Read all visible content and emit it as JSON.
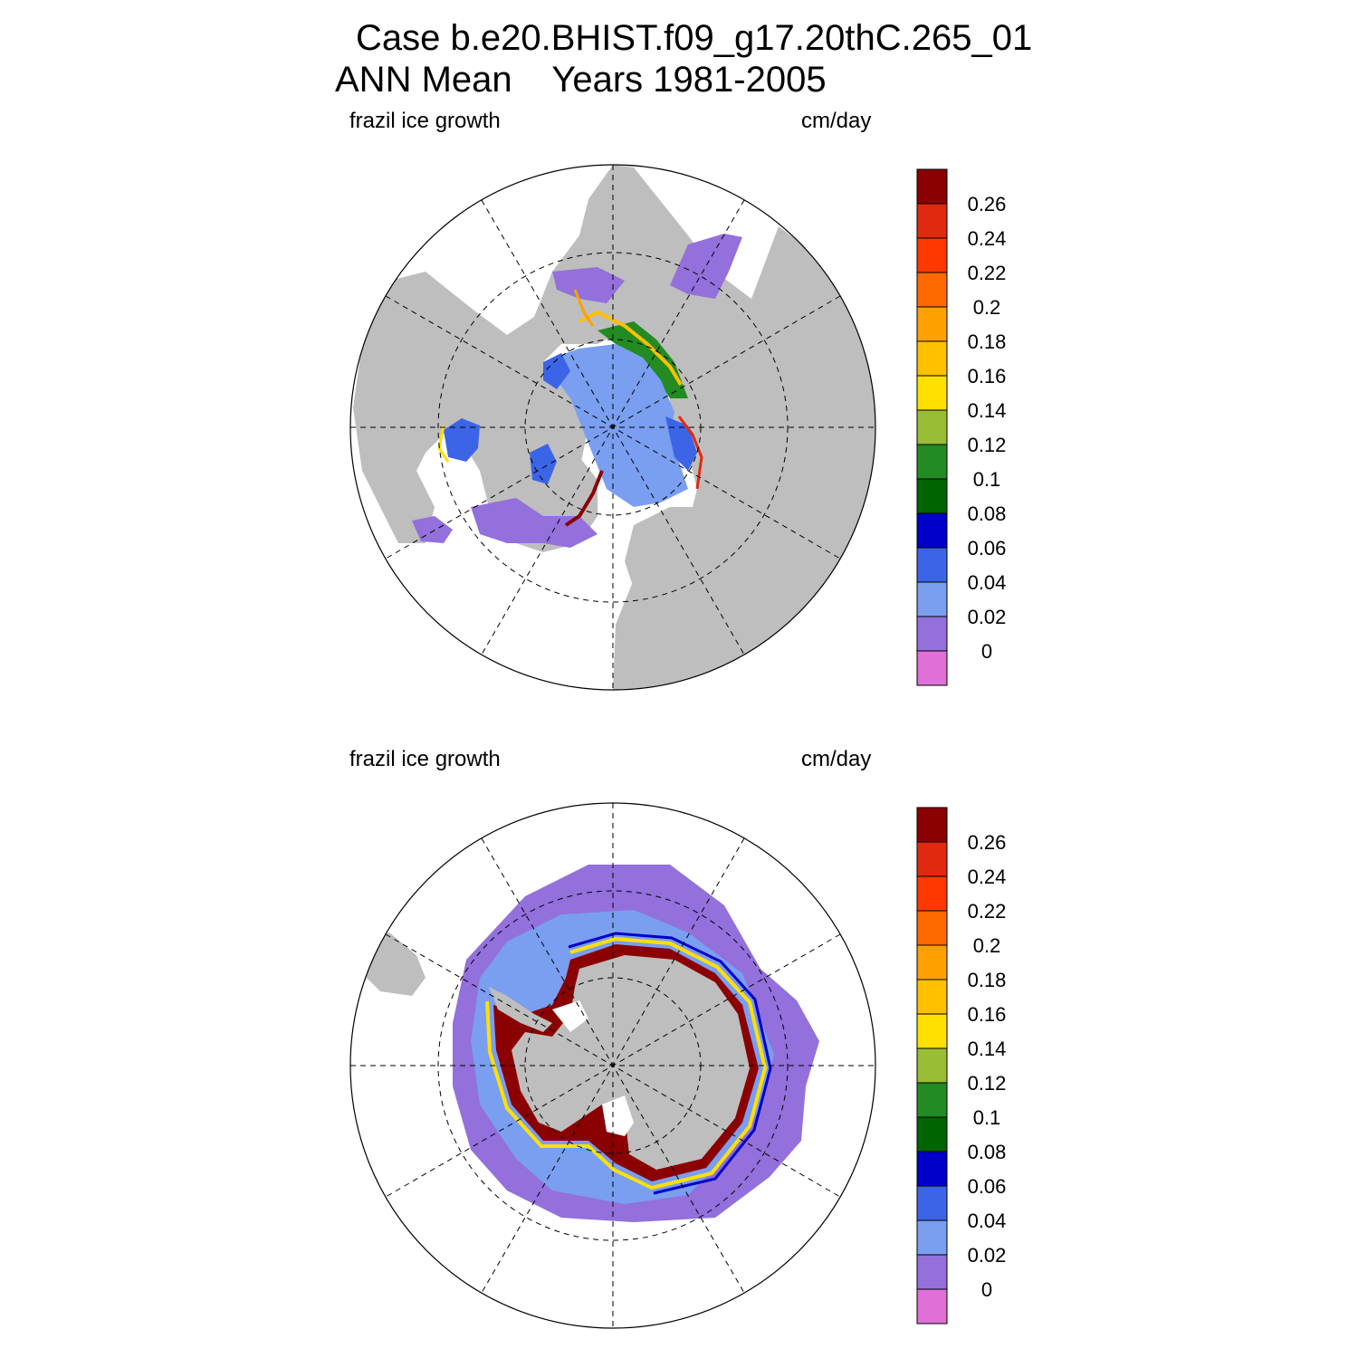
{
  "figure": {
    "title_line1": "Case b.e20.BHIST.f09_g17.20thC.265_01",
    "title_line2": "ANN Mean    Years 1981-2005"
  },
  "panels": [
    {
      "id": "north",
      "hemisphere": "Northern Hemisphere",
      "left_label": "frazil ice growth",
      "right_label": "cm/day"
    },
    {
      "id": "south",
      "hemisphere": "Southern Hemisphere",
      "left_label": "frazil ice growth",
      "right_label": "cm/day"
    }
  ],
  "colorbar": {
    "units": "cm/day",
    "colors": [
      "#e070d8",
      "#9370db",
      "#7a9ef0",
      "#3c64e6",
      "#0000c8",
      "#006400",
      "#228b22",
      "#9abd36",
      "#ffe000",
      "#ffc000",
      "#ffa000",
      "#ff6a00",
      "#ff3800",
      "#e02a10",
      "#8b0000"
    ],
    "tick_labels": [
      "0",
      "0.02",
      "0.04",
      "0.06",
      "0.08",
      "0.1",
      "0.12",
      "0.14",
      "0.16",
      "0.18",
      "0.2",
      "0.22",
      "0.24",
      "0.26"
    ]
  },
  "map_colors": {
    "land": "#bebebe",
    "background": "#ffffff",
    "grid": "#000000"
  }
}
